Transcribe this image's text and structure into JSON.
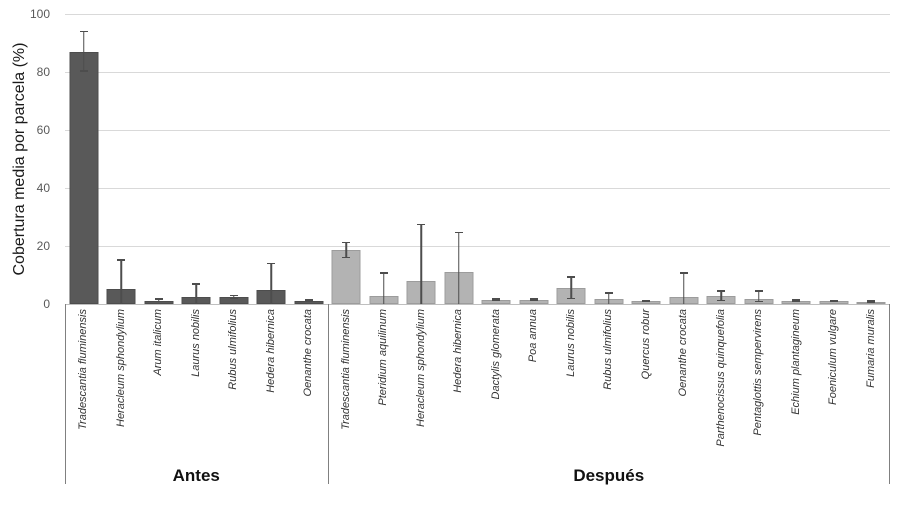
{
  "chart_data": {
    "type": "bar",
    "title": "",
    "ylabel": "Cobertura media por parcela (%)",
    "xlabel": "",
    "ylim": [
      0,
      100
    ],
    "yticks": [
      0,
      20,
      40,
      60,
      80,
      100
    ],
    "grid": true,
    "legend": "none",
    "colors": {
      "antes_fill": "#595959",
      "antes_border": "#4d4d4d",
      "despues_fill": "#b3b3b3",
      "despues_border": "#9c9c9c",
      "error_bar": "#4d4d4d",
      "gridline": "#d9d9d9",
      "axis_line": "#bfbfbf",
      "separator": "#808080",
      "tick_text": "#595959",
      "label_text": "#333333"
    },
    "groups": [
      {
        "label": "Antes",
        "fill": "#595959",
        "border": "#4d4d4d",
        "bars": [
          {
            "species": "Tradescantia fluminensis",
            "value": 87.0,
            "err_top": 94.0,
            "err_bot": 80.0
          },
          {
            "species": "Heracleum sphondylium",
            "value": 5.3,
            "err_top": 15.3,
            "err_bot": 0
          },
          {
            "species": "Arum italicum",
            "value": 1.2,
            "err_top": 1.9,
            "err_bot": 0.6
          },
          {
            "species": "Laurus nobilis",
            "value": 2.5,
            "err_top": 6.9,
            "err_bot": 0
          },
          {
            "species": "Rubus ulmifolius",
            "value": 2.3,
            "err_top": 3.0,
            "err_bot": 1.6
          },
          {
            "species": "Hedera hibernica",
            "value": 4.8,
            "err_top": 14.0,
            "err_bot": 0
          },
          {
            "species": "Oenanthe crocata",
            "value": 1.0,
            "err_top": 1.4,
            "err_bot": 0.6
          }
        ]
      },
      {
        "label": "Después",
        "fill": "#b3b3b3",
        "border": "#9c9c9c",
        "bars": [
          {
            "species": "Tradescantia fluminensis",
            "value": 18.5,
            "err_top": 21.3,
            "err_bot": 15.7
          },
          {
            "species": "Pteridium aquilinum",
            "value": 2.6,
            "err_top": 10.8,
            "err_bot": 0
          },
          {
            "species": "Heracleum sphondylium",
            "value": 8.0,
            "err_top": 27.5,
            "err_bot": 0
          },
          {
            "species": "Hedera hibernica",
            "value": 11.2,
            "err_top": 24.7,
            "err_bot": 0
          },
          {
            "species": "Dactylis glomerata",
            "value": 1.3,
            "err_top": 1.8,
            "err_bot": 0.9
          },
          {
            "species": "Poa annua",
            "value": 1.3,
            "err_top": 1.8,
            "err_bot": 0.9
          },
          {
            "species": "Laurus nobilis",
            "value": 5.5,
            "err_top": 9.4,
            "err_bot": 1.6
          },
          {
            "species": "Rubus ulmifolius",
            "value": 1.8,
            "err_top": 3.9,
            "err_bot": 0
          },
          {
            "species": "Quercus robur",
            "value": 0.9,
            "err_top": 1.2,
            "err_bot": 0.6
          },
          {
            "species": "Oenanthe crocata",
            "value": 2.5,
            "err_top": 10.7,
            "err_bot": 0
          },
          {
            "species": "Parthenocissus quinquefolia",
            "value": 2.7,
            "err_top": 4.6,
            "err_bot": 1.0
          },
          {
            "species": "Pentaglottis sempervirens",
            "value": 1.8,
            "err_top": 4.5,
            "err_bot": 0.6
          },
          {
            "species": "Echium plantagineum",
            "value": 1.2,
            "err_top": 1.6,
            "err_bot": 0.8
          },
          {
            "species": "Foeniculum vulgare",
            "value": 1.0,
            "err_top": 1.3,
            "err_bot": 0.7
          },
          {
            "species": "Fumaria muralis",
            "value": 0.8,
            "err_top": 1.1,
            "err_bot": 0.5
          }
        ]
      }
    ]
  }
}
